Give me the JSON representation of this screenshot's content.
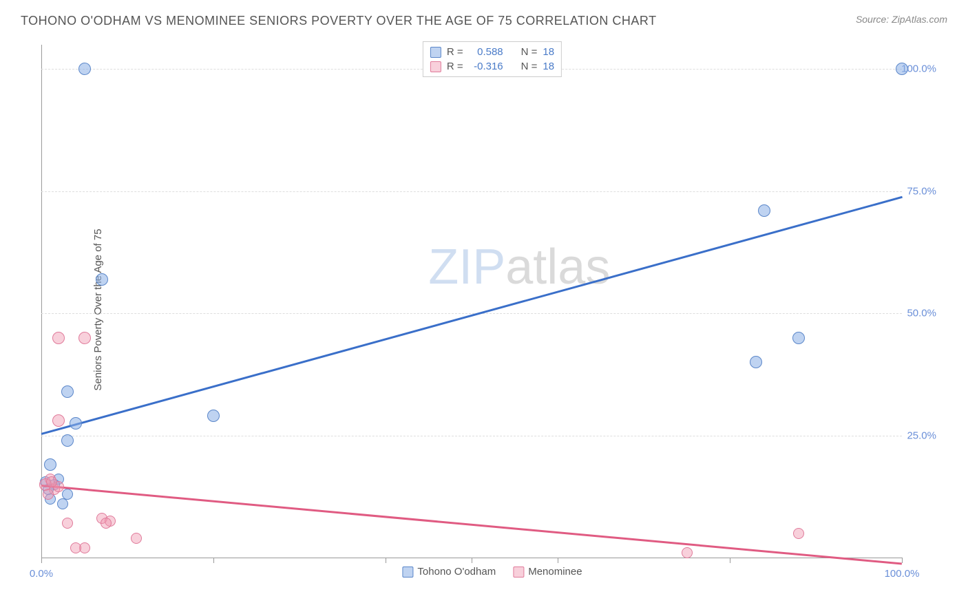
{
  "header": {
    "title": "TOHONO O'ODHAM VS MENOMINEE SENIORS POVERTY OVER THE AGE OF 75 CORRELATION CHART",
    "source": "Source: ZipAtlas.com"
  },
  "watermark": {
    "zip": "ZIP",
    "atlas": "atlas"
  },
  "chart": {
    "type": "scatter",
    "y_axis_label": "Seniors Poverty Over the Age of 75",
    "background_color": "#ffffff",
    "grid_color": "#dddddd",
    "axis_color": "#999999",
    "xlim": [
      0,
      100
    ],
    "ylim": [
      0,
      105
    ],
    "y_ticks": [
      {
        "value": 25,
        "label": "25.0%"
      },
      {
        "value": 50,
        "label": "50.0%"
      },
      {
        "value": 75,
        "label": "75.0%"
      },
      {
        "value": 100,
        "label": "100.0%"
      }
    ],
    "x_ticks": [
      {
        "value": 0,
        "label": "0.0%"
      },
      {
        "value": 20,
        "label": ""
      },
      {
        "value": 40,
        "label": ""
      },
      {
        "value": 50,
        "label": ""
      },
      {
        "value": 60,
        "label": ""
      },
      {
        "value": 80,
        "label": ""
      },
      {
        "value": 100,
        "label": "100.0%"
      }
    ],
    "series": [
      {
        "name": "Tohono O'odham",
        "color_fill": "rgba(138, 175, 230, 0.55)",
        "color_stroke": "#5a86c9",
        "trend_color": "#3a6fc9",
        "trend": {
          "x1": 0,
          "y1": 25.5,
          "x2": 100,
          "y2": 74
        },
        "R": "0.588",
        "N": "18",
        "points": [
          {
            "x": 5,
            "y": 100,
            "r": 9
          },
          {
            "x": 100,
            "y": 100,
            "r": 9
          },
          {
            "x": 7,
            "y": 57,
            "r": 9
          },
          {
            "x": 84,
            "y": 71,
            "r": 9
          },
          {
            "x": 88,
            "y": 45,
            "r": 9
          },
          {
            "x": 83,
            "y": 40,
            "r": 9
          },
          {
            "x": 3,
            "y": 34,
            "r": 9
          },
          {
            "x": 20,
            "y": 29,
            "r": 9
          },
          {
            "x": 4,
            "y": 27.5,
            "r": 9
          },
          {
            "x": 3,
            "y": 24,
            "r": 9
          },
          {
            "x": 1,
            "y": 19,
            "r": 9
          },
          {
            "x": 2,
            "y": 16,
            "r": 8
          },
          {
            "x": 1.5,
            "y": 15,
            "r": 8
          },
          {
            "x": 0.8,
            "y": 14,
            "r": 8
          },
          {
            "x": 1,
            "y": 12,
            "r": 8
          },
          {
            "x": 2.5,
            "y": 11,
            "r": 8
          },
          {
            "x": 3,
            "y": 13,
            "r": 8
          },
          {
            "x": 0.5,
            "y": 15.5,
            "r": 8
          }
        ]
      },
      {
        "name": "Menominee",
        "color_fill": "rgba(240, 150, 175, 0.45)",
        "color_stroke": "#e07a9a",
        "trend_color": "#e05b82",
        "trend": {
          "x1": 0,
          "y1": 15,
          "x2": 100,
          "y2": -1
        },
        "R": "-0.316",
        "N": "18",
        "points": [
          {
            "x": 2,
            "y": 45,
            "r": 9
          },
          {
            "x": 5,
            "y": 45,
            "r": 9
          },
          {
            "x": 2,
            "y": 28,
            "r": 9
          },
          {
            "x": 1,
            "y": 16,
            "r": 8
          },
          {
            "x": 0.5,
            "y": 15,
            "r": 9
          },
          {
            "x": 1.5,
            "y": 14,
            "r": 8
          },
          {
            "x": 2,
            "y": 14.5,
            "r": 8
          },
          {
            "x": 0.8,
            "y": 13,
            "r": 8
          },
          {
            "x": 3,
            "y": 7,
            "r": 8
          },
          {
            "x": 7,
            "y": 8,
            "r": 8
          },
          {
            "x": 8,
            "y": 7.5,
            "r": 8
          },
          {
            "x": 7.5,
            "y": 7,
            "r": 8
          },
          {
            "x": 11,
            "y": 4,
            "r": 8
          },
          {
            "x": 5,
            "y": 2,
            "r": 8
          },
          {
            "x": 4,
            "y": 2,
            "r": 8
          },
          {
            "x": 75,
            "y": 1,
            "r": 8
          },
          {
            "x": 88,
            "y": 5,
            "r": 8
          },
          {
            "x": 1.2,
            "y": 15.5,
            "r": 8
          }
        ]
      }
    ],
    "legend_top": {
      "r_label": "R =",
      "n_label": "N ="
    },
    "legend_bottom": [
      {
        "swatch_fill": "rgba(138,175,230,0.55)",
        "swatch_stroke": "#5a86c9",
        "label": "Tohono O'odham"
      },
      {
        "swatch_fill": "rgba(240,150,175,0.45)",
        "swatch_stroke": "#e07a9a",
        "label": "Menominee"
      }
    ]
  }
}
